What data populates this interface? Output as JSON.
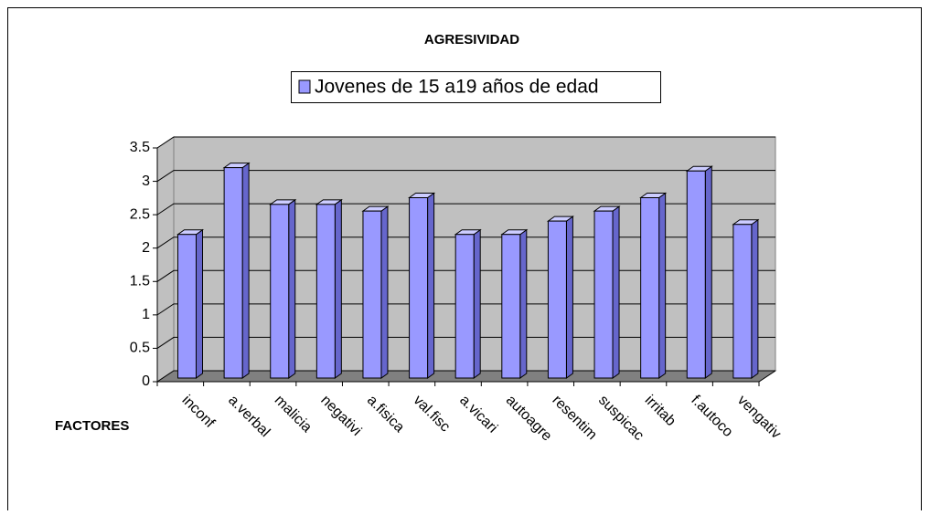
{
  "chart_data": {
    "type": "bar3d",
    "title": "AGRESIVIDAD",
    "x_label": "FACTORES",
    "categories": [
      "inconf",
      "a.verbal",
      "malicia",
      "negativi",
      "a.fisica",
      "val.fisc",
      "a.vicari",
      "autoagre",
      "resentim",
      "suspicac",
      "irritab",
      "f.autoco",
      "vengativ"
    ],
    "series": [
      {
        "name": "Jovenes de 15 a19 años de edad",
        "color": "#9999ff",
        "values": [
          2.15,
          3.15,
          2.6,
          2.6,
          2.5,
          2.7,
          2.15,
          2.15,
          2.35,
          2.5,
          2.7,
          3.1,
          2.3
        ]
      }
    ],
    "ylim": [
      0,
      3.5
    ],
    "yticks": [
      0,
      0.5,
      1,
      1.5,
      2,
      2.5,
      3,
      3.5
    ],
    "grid": true,
    "legend": "top"
  }
}
